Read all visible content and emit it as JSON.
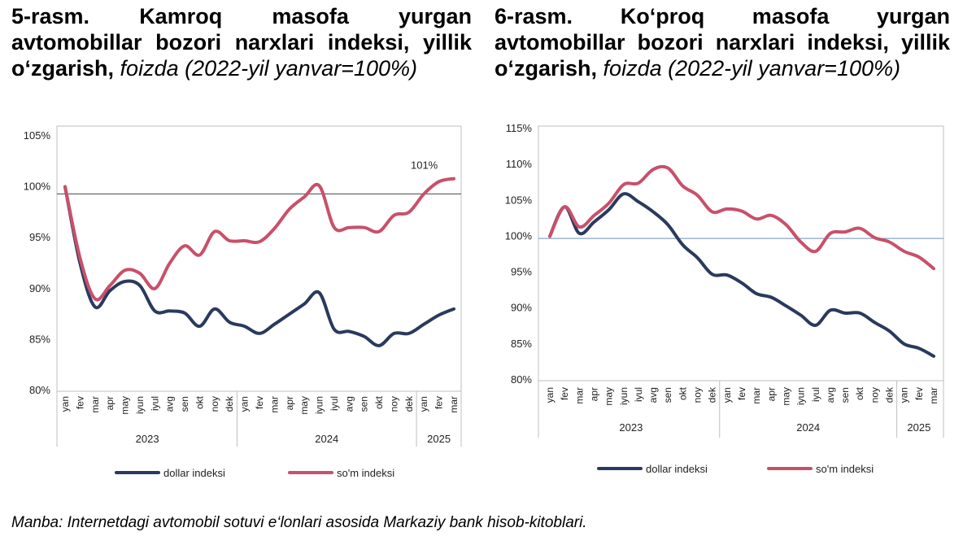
{
  "titles": [
    {
      "label": "5-rasm.",
      "text": "Kamroq masofa yurgan avtomobillar bozori narxlari indeksi, yillik o‘zgarish,",
      "unit": "foizda (2022-yil yanvar=100%)"
    },
    {
      "label": "6-rasm.",
      "text": "Ko‘proq masofa yurgan avtomobillar bozori narxlari indeksi, yillik o‘zgarish,",
      "unit": "foizda (2022-yil yanvar=100%)"
    }
  ],
  "source": "Manba: Internetdagi avtomobil sotuvi e‘lonlari asosida Markaziy bank hisob-kitoblari.",
  "colors": {
    "dollar": "#2a3a5e",
    "som": "#c9506a",
    "ref_left": "#444444",
    "ref_right": "#6e8fb3",
    "grid_frame": "#bfbfbf"
  },
  "chart_data": [
    {
      "type": "line",
      "x": [
        "yan",
        "fev",
        "mar",
        "apr",
        "may",
        "iyun",
        "iyul",
        "avg",
        "sen",
        "okt",
        "noy",
        "dek",
        "yan",
        "fev",
        "mar",
        "apr",
        "may",
        "iyun",
        "iyul",
        "avg",
        "sen",
        "okt",
        "noy",
        "dek",
        "yan",
        "fev",
        "mar"
      ],
      "year_groups": [
        {
          "label": "2023",
          "count": 12
        },
        {
          "label": "2024",
          "count": 12
        },
        {
          "label": "2025",
          "count": 3
        }
      ],
      "ylim": [
        80,
        105
      ],
      "yticks": [
        80,
        85,
        90,
        95,
        100,
        105
      ],
      "yticklabels": [
        "80%",
        "85%",
        "90%",
        "95%",
        "100%",
        "105%"
      ],
      "reference_line": 99.3,
      "series": [
        {
          "name": "dollar indeksi",
          "values": [
            100,
            92.5,
            88.2,
            89.8,
            90.7,
            90.3,
            87.8,
            87.8,
            87.6,
            86.3,
            88.0,
            86.7,
            86.3,
            85.6,
            86.5,
            87.5,
            88.5,
            89.6,
            86.0,
            85.8,
            85.3,
            84.4,
            85.6,
            85.6,
            86.5,
            87.4,
            88.0
          ]
        },
        {
          "name": "so'm indeksi",
          "values": [
            100,
            93.0,
            89.0,
            90.3,
            91.8,
            91.5,
            90.0,
            92.5,
            94.2,
            93.3,
            95.6,
            94.7,
            94.7,
            94.6,
            95.9,
            97.8,
            99.0,
            100.1,
            96.0,
            96.0,
            96.0,
            95.6,
            97.2,
            97.5,
            99.3,
            100.5,
            100.8
          ]
        }
      ],
      "annotation": {
        "text": "101%",
        "series": 1,
        "index": 25
      }
    },
    {
      "type": "line",
      "x": [
        "yan",
        "fev",
        "mar",
        "apr",
        "may",
        "iyun",
        "iyul",
        "avg",
        "sen",
        "okt",
        "noy",
        "dek",
        "yan",
        "fev",
        "mar",
        "apr",
        "may",
        "iyun",
        "iyul",
        "avg",
        "sen",
        "okt",
        "noy",
        "dek",
        "yan",
        "fev",
        "mar"
      ],
      "year_groups": [
        {
          "label": "2023",
          "count": 12
        },
        {
          "label": "2024",
          "count": 12
        },
        {
          "label": "2025",
          "count": 3
        }
      ],
      "ylim": [
        80,
        115
      ],
      "yticks": [
        80,
        85,
        90,
        95,
        100,
        105,
        110,
        115
      ],
      "yticklabels": [
        "80%",
        "85%",
        "90%",
        "95%",
        "100%",
        "105%",
        "110%",
        "115%"
      ],
      "reference_line": 99.7,
      "series": [
        {
          "name": "dollar indeksi",
          "values": [
            100,
            104.1,
            100.4,
            102.0,
            103.7,
            105.9,
            104.8,
            103.4,
            101.6,
            98.8,
            97.0,
            94.7,
            94.6,
            93.5,
            92.0,
            91.5,
            90.3,
            89.0,
            87.6,
            89.7,
            89.3,
            89.3,
            88.0,
            86.8,
            85.0,
            84.4,
            83.3
          ]
        },
        {
          "name": "so'm indeksi",
          "values": [
            100,
            104.1,
            101.3,
            102.9,
            104.6,
            107.2,
            107.4,
            109.3,
            109.5,
            107.0,
            105.7,
            103.4,
            103.8,
            103.5,
            102.4,
            102.9,
            101.6,
            99.2,
            97.9,
            100.4,
            100.6,
            101.1,
            99.8,
            99.2,
            97.9,
            97.1,
            95.5
          ]
        }
      ]
    }
  ]
}
